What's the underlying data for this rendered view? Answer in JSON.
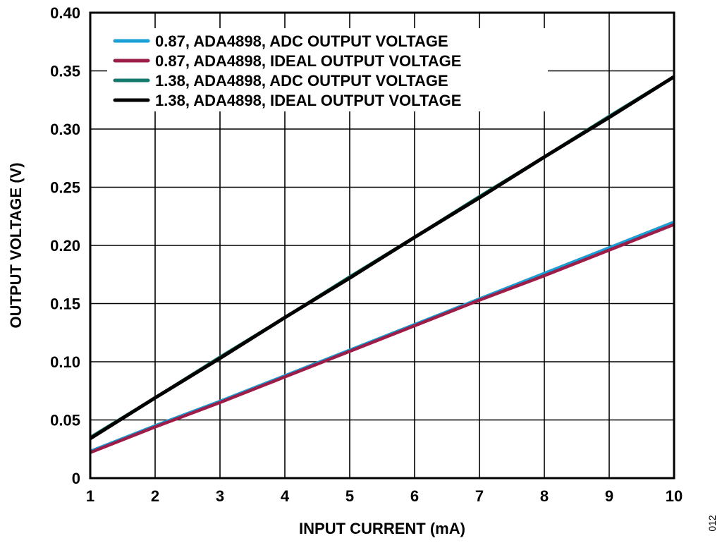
{
  "chart_data": {
    "type": "line",
    "xlabel": "INPUT CURRENT (mA)",
    "ylabel": "OUTPUT VOLTAGE (V)",
    "xlim": [
      1,
      10
    ],
    "ylim": [
      0,
      0.4
    ],
    "x_ticks": [
      "1",
      "2",
      "3",
      "4",
      "5",
      "6",
      "7",
      "8",
      "9",
      "10"
    ],
    "y_ticks": [
      "0",
      "0.05",
      "0.10",
      "0.15",
      "0.20",
      "0.25",
      "0.30",
      "0.35",
      "0.40"
    ],
    "grid": true,
    "legend_position": "top-left",
    "x": [
      1,
      2,
      3,
      4,
      5,
      6,
      7,
      8,
      9,
      10
    ],
    "series": [
      {
        "name": "0.87, ADA4898, ADC OUTPUT VOLTAGE",
        "color": "#1a9fd6",
        "values": [
          0.023,
          0.045,
          0.066,
          0.088,
          0.11,
          0.132,
          0.154,
          0.176,
          0.198,
          0.22
        ]
      },
      {
        "name": "0.87, ADA4898, IDEAL OUTPUT VOLTAGE",
        "color": "#9b1d48",
        "values": [
          0.022,
          0.044,
          0.065,
          0.087,
          0.109,
          0.131,
          0.153,
          0.174,
          0.196,
          0.218
        ]
      },
      {
        "name": "1.38, ADA4898, ADC OUTPUT VOLTAGE",
        "color": "#157a6e",
        "values": [
          0.035,
          0.069,
          0.104,
          0.138,
          0.173,
          0.207,
          0.242,
          0.276,
          0.311,
          0.345
        ]
      },
      {
        "name": "1.38, ADA4898, IDEAL OUTPUT VOLTAGE",
        "color": "#000000",
        "values": [
          0.034,
          0.069,
          0.103,
          0.138,
          0.172,
          0.207,
          0.241,
          0.276,
          0.31,
          0.345
        ]
      }
    ]
  },
  "figure_id": "012"
}
